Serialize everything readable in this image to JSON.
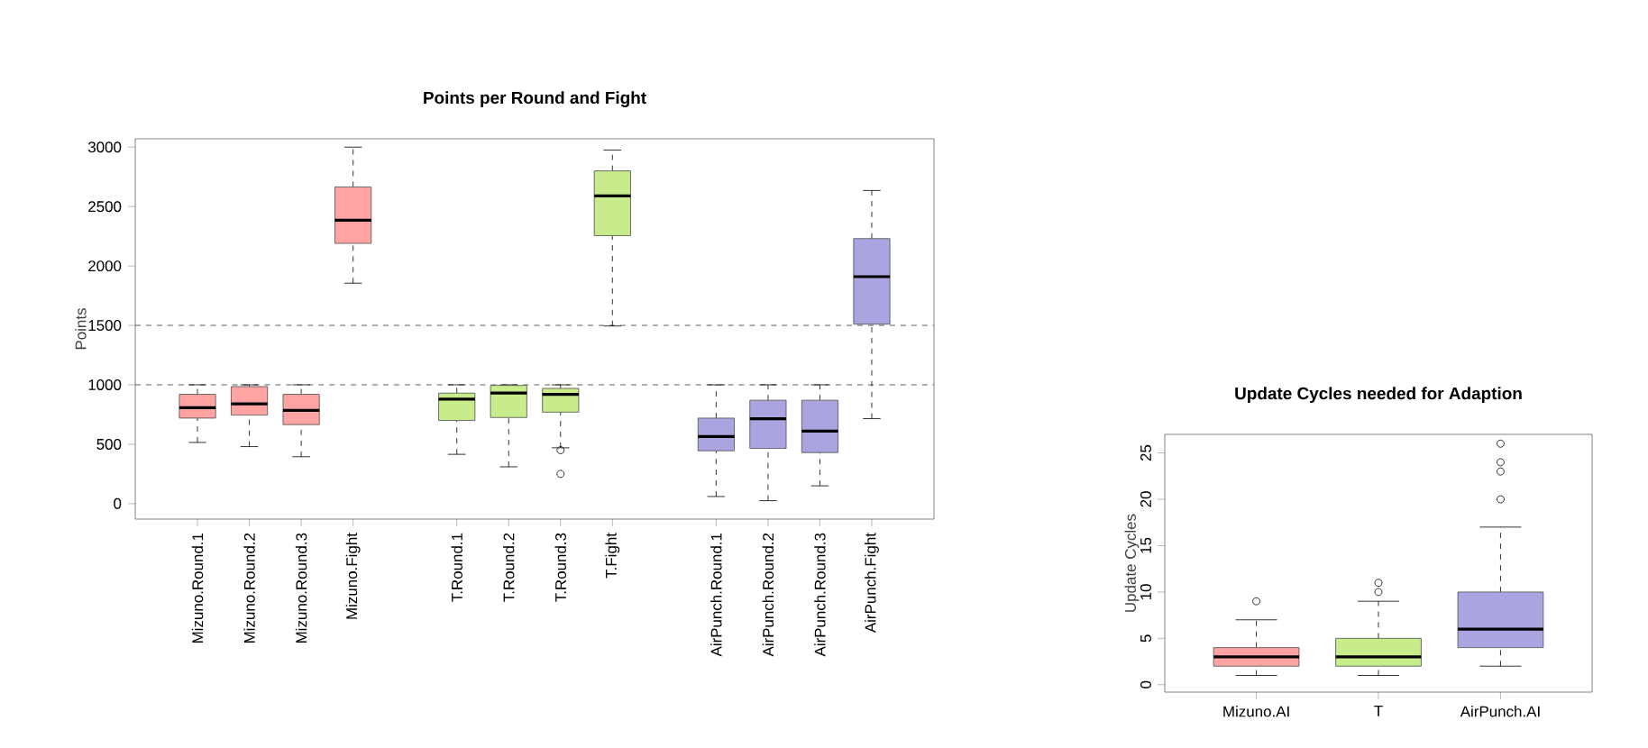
{
  "chart_data": [
    {
      "type": "box",
      "title": "**Points per Round and Fight**",
      "ylabel": "Points",
      "categories": [
        "Mizuno.Round.1",
        "Mizuno.Round.2",
        "Mizuno.Round.3",
        "Mizuno.Fight",
        null,
        "T.Round.1",
        "T.Round.2",
        "T.Round.3",
        "T.Fight",
        null,
        "AirPunch.Round.1",
        "AirPunch.Round.2",
        "AirPunch.Round.3",
        "AirPunch.Fight"
      ],
      "boxes": [
        {
          "low": 515,
          "q1": 720,
          "median": 808,
          "q3": 920,
          "high": 1000
        },
        {
          "low": 480,
          "q1": 745,
          "median": 840,
          "q3": 985,
          "high": 1000
        },
        {
          "low": 395,
          "q1": 665,
          "median": 785,
          "q3": 920,
          "high": 1000
        },
        {
          "low": 1855,
          "q1": 2190,
          "median": 2385,
          "q3": 2665,
          "high": 3000
        },
        null,
        {
          "low": 415,
          "q1": 700,
          "median": 880,
          "q3": 930,
          "high": 1000
        },
        {
          "low": 310,
          "q1": 725,
          "median": 930,
          "q3": 995,
          "high": 1000
        },
        {
          "low": 470,
          "q1": 770,
          "median": 920,
          "q3": 970,
          "high": 1000,
          "outliers": [
            450,
            250
          ]
        },
        {
          "low": 1495,
          "q1": 2255,
          "median": 2590,
          "q3": 2800,
          "high": 2975
        },
        null,
        {
          "low": 60,
          "q1": 445,
          "median": 565,
          "q3": 720,
          "high": 1000
        },
        {
          "low": 25,
          "q1": 465,
          "median": 715,
          "q3": 870,
          "high": 1000
        },
        {
          "low": 150,
          "q1": 430,
          "median": 610,
          "q3": 870,
          "high": 1000
        },
        {
          "low": 715,
          "q1": 1510,
          "median": 1910,
          "q3": 2230,
          "high": 2635
        }
      ],
      "colors": [
        "#ffa3a3",
        "#ffa3a3",
        "#ffa3a3",
        "#ffa3a3",
        null,
        "#c8ec8c",
        "#c8ec8c",
        "#c8ec8c",
        "#c8ec8c",
        null,
        "#aaa5e0",
        "#aaa5e0",
        "#aaa5e0",
        "#aaa5e0"
      ],
      "ylim": [
        -130,
        3070
      ],
      "yticks": [
        0,
        500,
        1000,
        1500,
        2000,
        2500,
        3000
      ],
      "ref_lines": [
        {
          "axis": "y",
          "value": 1500,
          "line_style": "dashed"
        },
        {
          "axis": "y",
          "value": 1000,
          "line_style": "dashed"
        }
      ]
    },
    {
      "type": "box",
      "title": "**Update Cycles needed for Adaption**",
      "ylabel": "Update Cycles",
      "categories": [
        "Mizuno.AI",
        "T",
        "AirPunch.AI"
      ],
      "boxes": [
        {
          "low": 1,
          "q1": 2,
          "median": 3,
          "q3": 4,
          "high": 7,
          "outliers": [
            9
          ]
        },
        {
          "low": 1,
          "q1": 2,
          "median": 3,
          "q3": 5,
          "high": 9,
          "outliers": [
            10,
            11
          ]
        },
        {
          "low": 2,
          "q1": 4,
          "median": 6,
          "q3": 10,
          "high": 17,
          "outliers": [
            20,
            23,
            24,
            26
          ]
        }
      ],
      "colors": [
        "#ffa3a3",
        "#c8ec8c",
        "#aaa5e0"
      ],
      "ylim": [
        -0.8,
        27
      ],
      "yticks": [
        0,
        5,
        10,
        15,
        20,
        25
      ]
    }
  ]
}
